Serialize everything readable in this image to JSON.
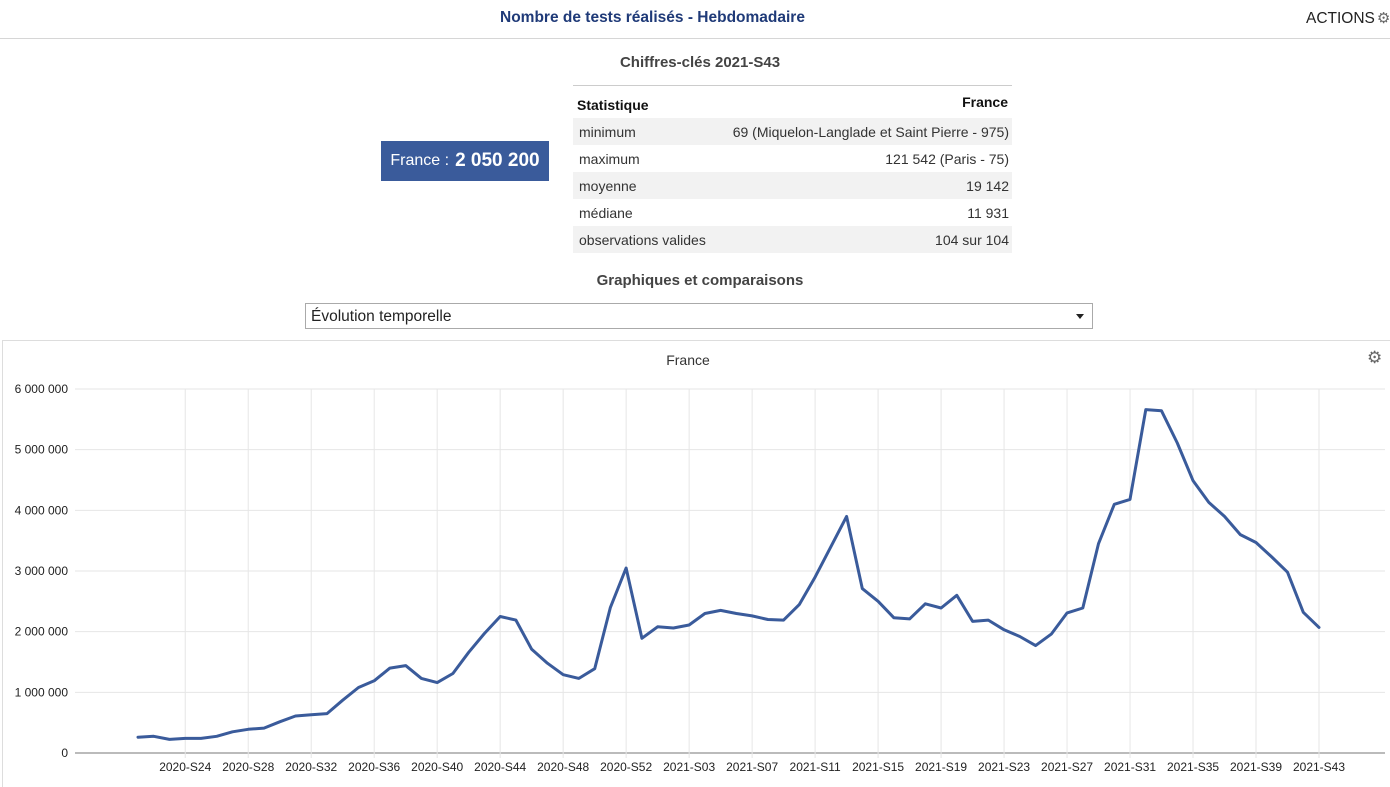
{
  "header": {
    "title": "Nombre de tests réalisés - Hebdomadaire",
    "actions_label": "ACTIONS",
    "actions_icon": "gear-icon"
  },
  "key_figures": {
    "title": "Chiffres-clés 2021-S43",
    "badge_prefix": "France : ",
    "badge_value": "2 050 200",
    "badge_color": "#3a5b9b",
    "table": {
      "col_stat": "Statistique",
      "col_france": "France",
      "rows": [
        {
          "label": "minimum",
          "value": "69 (Miquelon-Langlade et Saint Pierre - 975)"
        },
        {
          "label": "maximum",
          "value": "121 542 (Paris - 75)"
        },
        {
          "label": "moyenne",
          "value": "19 142"
        },
        {
          "label": "médiane",
          "value": "11 931"
        },
        {
          "label": "observations valides",
          "value": "104 sur 104"
        }
      ]
    }
  },
  "charts_section": {
    "title": "Graphiques et comparaisons",
    "select_value": "Évolution temporelle"
  },
  "chart_data": {
    "type": "line",
    "title": "France",
    "line_color": "#3a5b9b",
    "ylim": [
      0,
      6000000
    ],
    "y_ticks": [
      "0",
      "1 000 000",
      "2 000 000",
      "3 000 000",
      "4 000 000",
      "5 000 000",
      "6 000 000"
    ],
    "x_tick_labels": [
      "2020-S24",
      "2020-S28",
      "2020-S32",
      "2020-S36",
      "2020-S40",
      "2020-S44",
      "2020-S48",
      "2020-S52",
      "2021-S03",
      "2021-S07",
      "2021-S11",
      "2021-S15",
      "2021-S19",
      "2021-S23",
      "2021-S27",
      "2021-S31",
      "2021-S35",
      "2021-S39",
      "2021-S43"
    ],
    "grid": true,
    "series": [
      {
        "values": [
          260000,
          275000,
          225000,
          240000,
          240000,
          275000,
          350000,
          390000,
          410000,
          515000,
          610000,
          630000,
          650000,
          870000,
          1080000,
          1190000,
          1400000,
          1440000,
          1230000,
          1160000,
          1310000,
          1660000,
          1970000,
          2250000,
          2190000,
          1710000,
          1480000,
          1290000,
          1230000,
          1390000,
          2400000,
          3050000,
          1890000,
          2080000,
          2060000,
          2110000,
          2300000,
          2350000,
          2300000,
          2260000,
          2200000,
          2190000,
          2450000,
          2900000,
          3400000,
          3900000,
          2710000,
          2500000,
          2230000,
          2210000,
          2460000,
          2390000,
          2600000,
          2170000,
          2190000,
          2030000,
          1920000,
          1770000,
          1960000,
          2310000,
          2390000,
          3450000,
          4100000,
          4180000,
          5660000,
          5640000,
          5110000,
          4490000,
          4130000,
          3900000,
          3600000,
          3470000,
          3230000,
          2980000,
          2320000,
          2070000
        ]
      }
    ]
  }
}
